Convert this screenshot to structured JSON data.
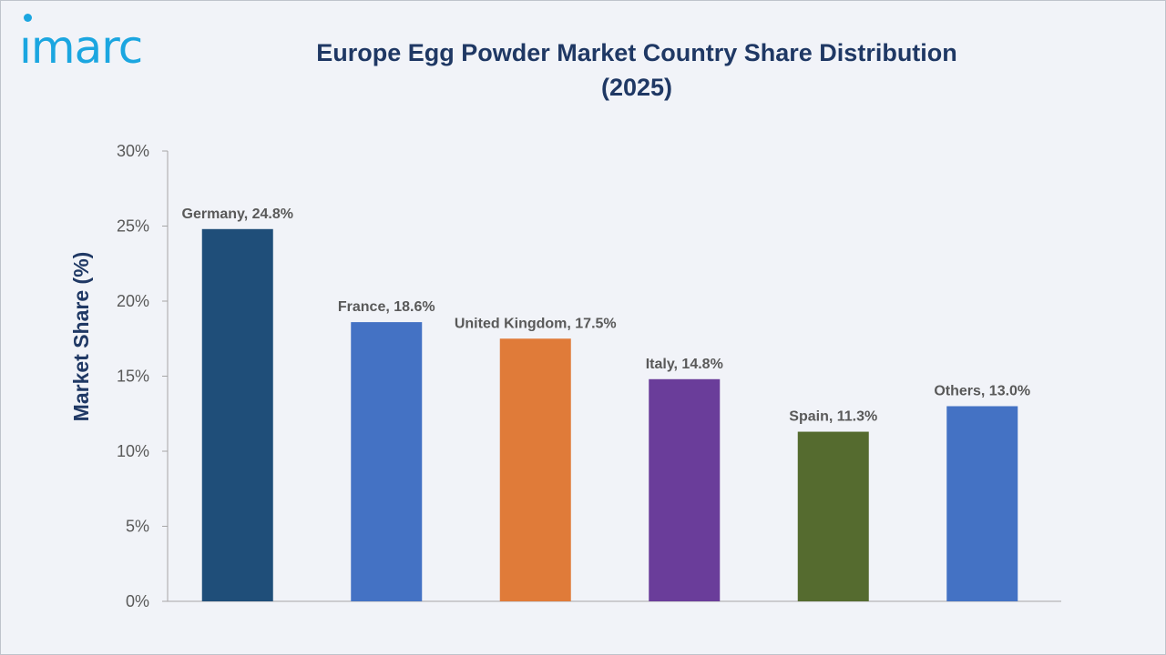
{
  "brand": {
    "logo_text": "ımarc",
    "logo_color": "#1ba6e0"
  },
  "chart_data": {
    "type": "bar",
    "title": "Europe Egg Powder Market Country Share Distribution (2025)",
    "title_lines": [
      "Europe Egg Powder Market Country Share Distribution",
      "(2025)"
    ],
    "xlabel": "",
    "ylabel": "Market Share (%)",
    "ylim": [
      0,
      30
    ],
    "yticks": [
      0,
      5,
      10,
      15,
      20,
      25,
      30
    ],
    "ytick_labels": [
      "0%",
      "5%",
      "10%",
      "15%",
      "20%",
      "25%",
      "30%"
    ],
    "categories": [
      "Germany",
      "France",
      "United Kingdom",
      "Italy",
      "Spain",
      "Others"
    ],
    "values": [
      24.8,
      18.6,
      17.5,
      14.8,
      11.3,
      13.0
    ],
    "data_labels": [
      "Germany, 24.8%",
      "France, 18.6%",
      "United Kingdom, 17.5%",
      "Italy, 14.8%",
      "Spain, 11.3%",
      "Others, 13.0%"
    ],
    "colors": [
      "#1f4e79",
      "#4472c4",
      "#e07b39",
      "#6a3d9a",
      "#556b2f",
      "#4472c4"
    ],
    "grid": false,
    "legend": "none"
  }
}
